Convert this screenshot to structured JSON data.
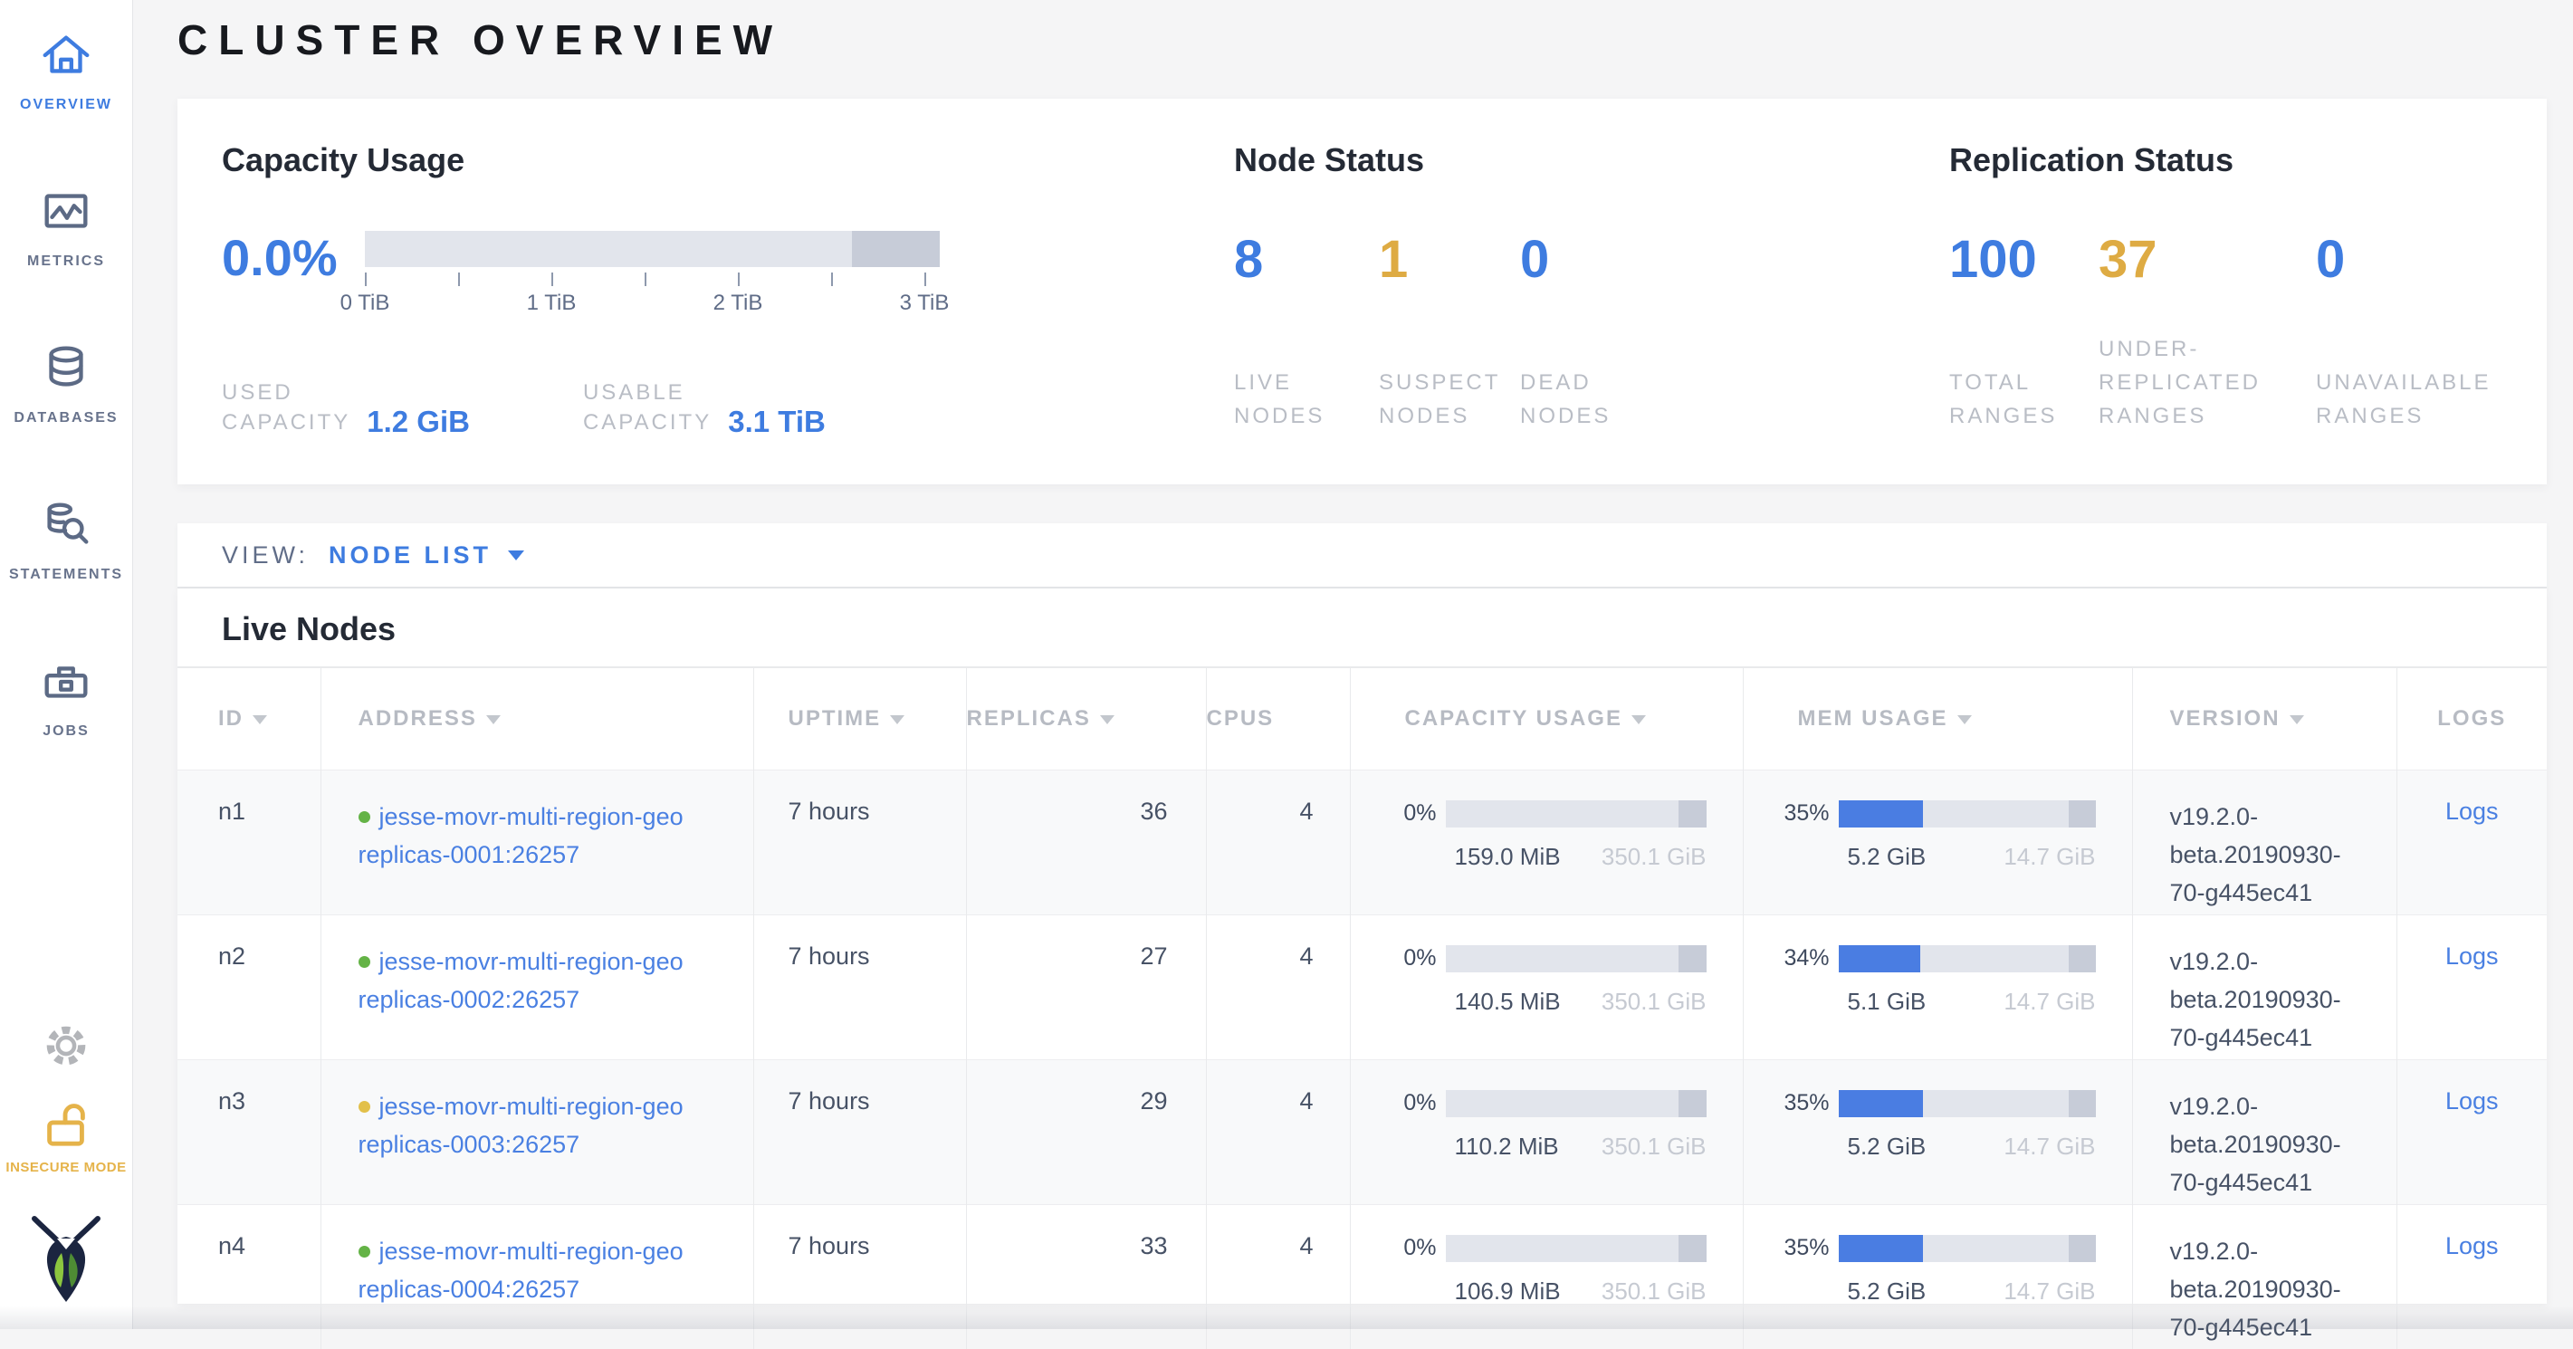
{
  "colors": {
    "accent_blue": "#3e7ce0",
    "link_blue": "#4a80e2",
    "warning_yellow": "#deab43",
    "insecure_yellow": "#e5b34a",
    "green_dot": "#64b346",
    "yellow_dot": "#e2c04a",
    "page_bg": "#f5f5f6",
    "bar_light": "#e2e5ec",
    "bar_dark": "#c7ccd8",
    "mem_fill": "#4a7de2",
    "text_dark": "#475266",
    "text_slate": "#5f6c87",
    "text_muted": "#b9bdc5",
    "text_faint": "#c6cad2",
    "row_stripe": "#f8f9fa",
    "border": "#e9eaec"
  },
  "sidebar": {
    "items": [
      {
        "label": "OVERVIEW",
        "icon": "home-icon",
        "active": true
      },
      {
        "label": "METRICS",
        "icon": "metrics-icon",
        "active": false
      },
      {
        "label": "DATABASES",
        "icon": "databases-icon",
        "active": false
      },
      {
        "label": "STATEMENTS",
        "icon": "statements-icon",
        "active": false
      },
      {
        "label": "JOBS",
        "icon": "jobs-icon",
        "active": false
      }
    ],
    "insecure_label": "INSECURE MODE"
  },
  "page": {
    "title": "CLUSTER OVERVIEW"
  },
  "summary": {
    "capacity": {
      "title": "Capacity Usage",
      "percent": "0.0%",
      "ticks": [
        "0 TiB",
        "1 TiB",
        "2 TiB",
        "3 TiB"
      ],
      "used_label": "USED\nCAPACITY",
      "used_value": "1.2 GiB",
      "usable_label": "USABLE\nCAPACITY",
      "usable_value": "3.1 TiB"
    },
    "nodes": {
      "title": "Node Status",
      "stats": [
        {
          "value": "8",
          "label": "LIVE\nNODES",
          "color": "blue"
        },
        {
          "value": "1",
          "label": "SUSPECT\nNODES",
          "color": "yellow"
        },
        {
          "value": "0",
          "label": "DEAD\nNODES",
          "color": "blue"
        }
      ]
    },
    "replication": {
      "title": "Replication Status",
      "stats": [
        {
          "value": "100",
          "label": "TOTAL\nRANGES",
          "color": "blue"
        },
        {
          "value": "37",
          "label": "UNDER-\nREPLICATED\nRANGES",
          "color": "yellow"
        },
        {
          "value": "0",
          "label": "UNAVAILABLE\nRANGES",
          "color": "blue"
        }
      ]
    }
  },
  "view_bar": {
    "label": "VIEW:",
    "selected": "NODE LIST"
  },
  "table": {
    "title": "Live Nodes",
    "columns": [
      {
        "label": "ID",
        "sortable": true
      },
      {
        "label": "ADDRESS",
        "sortable": true
      },
      {
        "label": "UPTIME",
        "sortable": true
      },
      {
        "label": "REPLICAS",
        "sortable": true
      },
      {
        "label": "CPUS",
        "sortable": false
      },
      {
        "label": "CAPACITY USAGE",
        "sortable": true
      },
      {
        "label": "MEM USAGE",
        "sortable": true
      },
      {
        "label": "VERSION",
        "sortable": true
      },
      {
        "label": "LOGS",
        "sortable": false
      }
    ],
    "rows": [
      {
        "id": "n1",
        "status": "green",
        "address": "jesse-movr-multi-region-geo replicas-0001:26257",
        "uptime": "7 hours",
        "replicas": "36",
        "cpus": "4",
        "capacity": {
          "pct": "0%",
          "fill": 0,
          "used": "159.0 MiB",
          "total": "350.1 GiB"
        },
        "mem": {
          "pct": "35%",
          "fill": 33,
          "used": "5.2 GiB",
          "total": "14.7 GiB"
        },
        "version": "v19.2.0-beta.20190930-70-g445ec41",
        "logs": "Logs"
      },
      {
        "id": "n2",
        "status": "green",
        "address": "jesse-movr-multi-region-geo replicas-0002:26257",
        "uptime": "7 hours",
        "replicas": "27",
        "cpus": "4",
        "capacity": {
          "pct": "0%",
          "fill": 0,
          "used": "140.5 MiB",
          "total": "350.1 GiB"
        },
        "mem": {
          "pct": "34%",
          "fill": 32,
          "used": "5.1 GiB",
          "total": "14.7 GiB"
        },
        "version": "v19.2.0-beta.20190930-70-g445ec41",
        "logs": "Logs"
      },
      {
        "id": "n3",
        "status": "yellow",
        "address": "jesse-movr-multi-region-geo replicas-0003:26257",
        "uptime": "7 hours",
        "replicas": "29",
        "cpus": "4",
        "capacity": {
          "pct": "0%",
          "fill": 0,
          "used": "110.2 MiB",
          "total": "350.1 GiB"
        },
        "mem": {
          "pct": "35%",
          "fill": 33,
          "used": "5.2 GiB",
          "total": "14.7 GiB"
        },
        "version": "v19.2.0-beta.20190930-70-g445ec41",
        "logs": "Logs"
      },
      {
        "id": "n4",
        "status": "green",
        "address": "jesse-movr-multi-region-geo replicas-0004:26257",
        "uptime": "7 hours",
        "replicas": "33",
        "cpus": "4",
        "capacity": {
          "pct": "0%",
          "fill": 0,
          "used": "106.9 MiB",
          "total": "350.1 GiB"
        },
        "mem": {
          "pct": "35%",
          "fill": 33,
          "used": "5.2 GiB",
          "total": "14.7 GiB"
        },
        "version": "v19.2.0-beta.20190930-70-g445ec41",
        "logs": "Logs"
      }
    ]
  }
}
